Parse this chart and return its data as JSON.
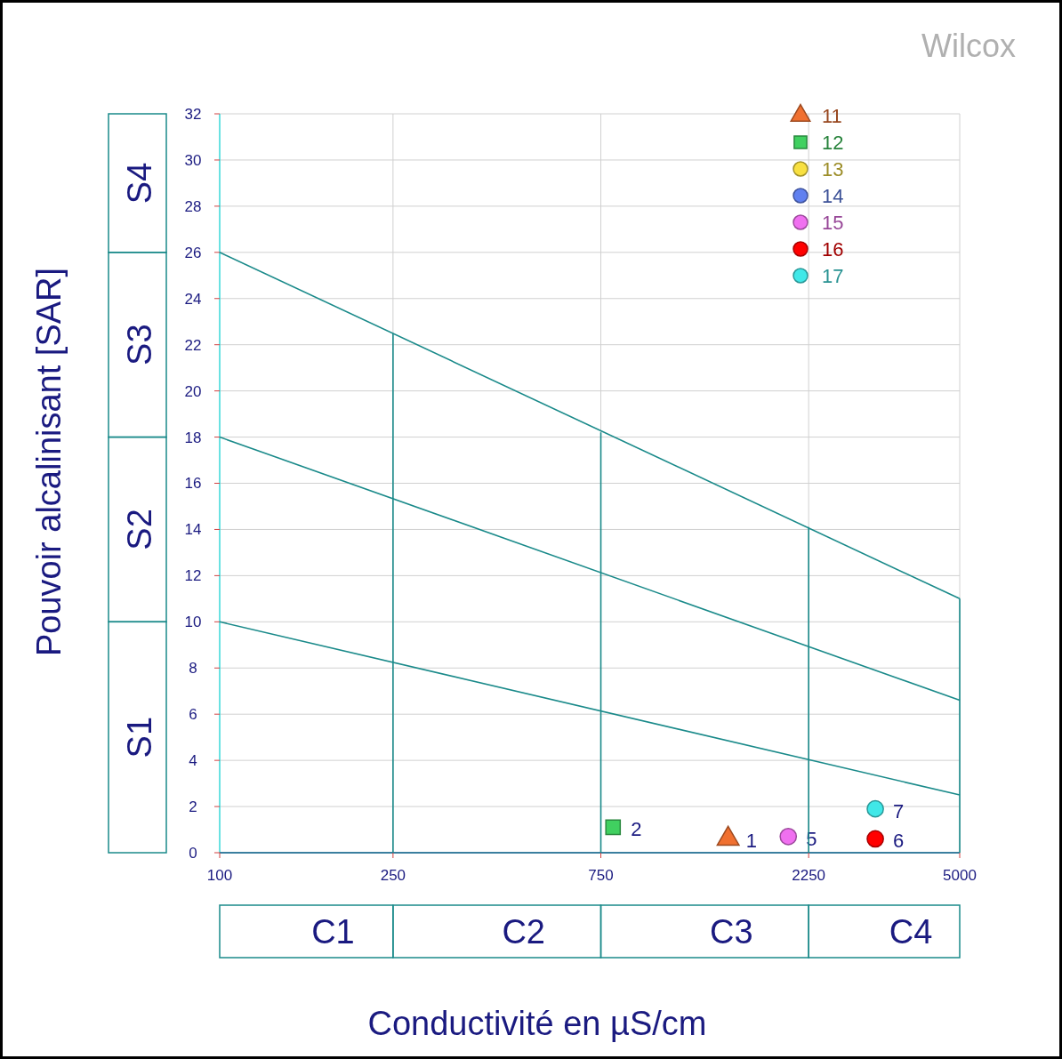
{
  "chart_data": {
    "type": "scatter",
    "title": "Wilcox",
    "xlabel": "Conductivité en µS/cm",
    "ylabel": "Pouvoir alcalinisant [SAR]",
    "log": "x",
    "xlim": [
      100,
      5000
    ],
    "xticks": [
      100,
      250,
      750,
      2250,
      5000
    ],
    "ylim": [
      0,
      32
    ],
    "yticks": [
      0,
      2,
      4,
      6,
      8,
      10,
      12,
      14,
      16,
      18,
      20,
      22,
      24,
      26,
      28,
      30,
      32
    ],
    "grid": true,
    "legend": "top right",
    "annotations": [
      "C1",
      "C2",
      "C3",
      "C4",
      "S1",
      "S2",
      "S3",
      "S4",
      {
        "text": "1",
        "x": 1470,
        "y": 0.6
      },
      {
        "text": "2",
        "x": 800,
        "y": 1.1
      },
      {
        "text": "5",
        "x": 2020,
        "y": 0.7
      },
      {
        "text": "6",
        "x": 3200,
        "y": 0.6
      },
      {
        "text": "7",
        "x": 3200,
        "y": 1.9
      }
    ],
    "series": [
      {
        "type": "line",
        "color": "#1a8a8a",
        "x": [
          100,
          5000
        ],
        "values": [
          26,
          11
        ]
      },
      {
        "type": "line",
        "color": "#1a8a8a",
        "x": [
          100,
          5000
        ],
        "values": [
          18,
          6.6
        ]
      },
      {
        "type": "line",
        "color": "#1a8a8a",
        "x": [
          100,
          5000
        ],
        "values": [
          10,
          2.5
        ]
      },
      {
        "type": "line",
        "color": "#1a8a8a",
        "x": [
          250,
          250
        ],
        "values": [
          0,
          22.5
        ]
      },
      {
        "type": "line",
        "color": "#1a8a8a",
        "x": [
          750,
          750
        ],
        "values": [
          0,
          18.2
        ]
      },
      {
        "type": "line",
        "color": "#1a8a8a",
        "x": [
          2250,
          2250
        ],
        "values": [
          0,
          14.1
        ]
      },
      {
        "type": "line",
        "color": "#1a8a8a",
        "x": [
          5000,
          5000
        ],
        "values": [
          0,
          11
        ]
      },
      {
        "name": "11",
        "color": "#f07030",
        "marker": "triangle",
        "x": [
          1470
        ],
        "values": [
          0.6
        ]
      },
      {
        "name": "12",
        "color": "#40d060",
        "marker": "square",
        "x": [
          800
        ],
        "values": [
          1.1
        ]
      },
      {
        "name": "13",
        "color": "#f8e040",
        "marker": "circle"
      },
      {
        "name": "14",
        "color": "#6080f0",
        "marker": "circle"
      },
      {
        "name": "15",
        "color": "#f070f0",
        "marker": "circle",
        "x": [
          2020
        ],
        "values": [
          0.7
        ]
      },
      {
        "name": "16",
        "color": "#ff0000",
        "marker": "circle",
        "x": [
          3200
        ],
        "values": [
          0.6
        ]
      },
      {
        "name": "17",
        "color": "#40e8e8",
        "marker": "circle",
        "x": [
          3200
        ],
        "values": [
          1.9
        ]
      }
    ]
  }
}
